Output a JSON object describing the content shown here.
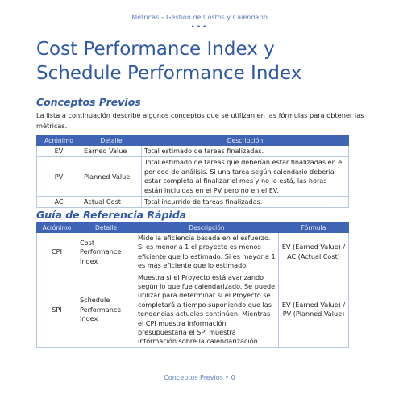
{
  "header": {
    "running_title": "Métricas – Gestión de Costos y Calendario",
    "ornament": "•••"
  },
  "title_line1": "Cost Performance Index y",
  "title_line2": "Schedule Performance Index",
  "section1": {
    "heading": "Conceptos Previos",
    "intro": "La lista a continuación describe algunos conceptos que se utilizan en las fórmulas para obtener las métricas.",
    "columns": [
      "Acrónimo",
      "Detalle",
      "Descripción"
    ],
    "rows": [
      {
        "acronym": "EV",
        "detail": "Earned Value",
        "description": "Total estimado de tareas finalizadas."
      },
      {
        "acronym": "PV",
        "detail": "Planned Value",
        "description": "Total estimado de tareas que deberían estar finalizadas en el periodo de análisis. Si una tarea según calendario debería estar completa al finalizar el mes y no lo está, las horas están incluidas en el PV pero no en el EV."
      },
      {
        "acronym": "AC",
        "detail": "Actual Cost",
        "description": "Total incurrido de tareas finalizadas."
      }
    ]
  },
  "section2": {
    "heading": "Guía de Referencia Rápida",
    "columns": [
      "Acrónimo",
      "Detalle",
      "Descripción",
      "Fórmula"
    ],
    "rows": [
      {
        "acronym": "CPI",
        "detail": "Cost Performance Index",
        "description": "Mide la eficiencia basada en el esfuerzo. Si es menor a 1 el proyecto es menos eficiente que lo estimado. Si es mayor a 1 es más eficiente que lo estimado.",
        "formula": "EV (Earned Value) / AC (Actual Cost)"
      },
      {
        "acronym": "SPI",
        "detail": "Schedule Performance Index",
        "description": "Muestra si el Proyecto está avanzando según lo que fue calendarizado. Se puede utilizar para determinar si el Proyecto se completará a tiempo suponiendo que las tendencias actuales continúen. Mientras el CPI muestra información presupuestaria el SPI muestra información sobre la calendarización.",
        "formula": "EV (Earned Value) / PV (Planned Value)"
      }
    ]
  },
  "footer": "Conceptos Previos • 0"
}
